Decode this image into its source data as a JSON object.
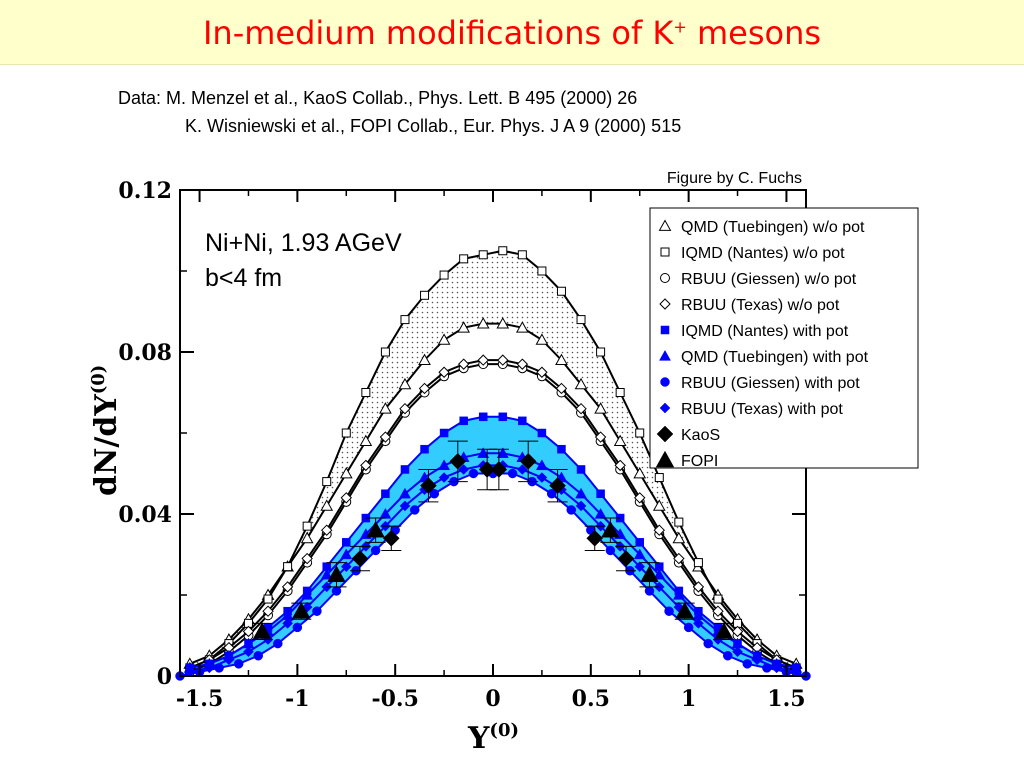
{
  "header": {
    "title": "In-medium modifications of K",
    "title_sup": "+",
    "title_suffix": " mesons",
    "title_color": "#ff0000",
    "background": "#ffffcc"
  },
  "sources": {
    "line1": "Data: M. Menzel et al., KaoS Collab.,  Phys. Lett. B 495 (2000) 26",
    "line2": "K. Wisniewski et al., FOPI Collab., Eur. Phys. J A 9 (2000) 515"
  },
  "credit": "Figure by C. Fuchs",
  "chart_data": {
    "type": "line",
    "xlabel": "Y",
    "xlabel_sup": "(0)",
    "ylabel": "dN/dY",
    "ylabel_sup": "(0)",
    "xlim": [
      -1.6,
      1.6
    ],
    "ylim": [
      0,
      0.12
    ],
    "x_ticks": [
      -1.5,
      -1,
      -0.5,
      0,
      0.5,
      1,
      1.5
    ],
    "x_tick_labels": [
      "-1.5",
      "-1",
      "-0.5",
      "0",
      "0.5",
      "1",
      "1.5"
    ],
    "y_ticks": [
      0,
      0.04,
      0.08,
      0.12
    ],
    "y_tick_labels": [
      "0",
      "0.04",
      "0.08",
      "0.12"
    ],
    "grid": false,
    "legend_position": "top-right",
    "annotations": [
      "Ni+Ni, 1.93 AGeV",
      "b<4 fm"
    ],
    "bands": [
      {
        "between": [
          "QMD (Tuebingen) w/o pot",
          "IQMD (Nantes) w/o pot"
        ],
        "fill": "dotted-gray"
      },
      {
        "between": [
          "IQMD (Nantes) with pot",
          "RBUU (Giessen) with pot"
        ],
        "fill": "#33ccff"
      }
    ],
    "series": [
      {
        "name": "QMD (Tuebingen) w/o pot",
        "color": "#000000",
        "marker": "triangle-open",
        "x": [
          -1.55,
          -1.45,
          -1.35,
          -1.25,
          -1.15,
          -1.05,
          -0.95,
          -0.85,
          -0.75,
          -0.65,
          -0.55,
          -0.45,
          -0.35,
          -0.25,
          -0.15,
          -0.05,
          0.05,
          0.15,
          0.25,
          0.35,
          0.45,
          0.55,
          0.65,
          0.75,
          0.85,
          0.95,
          1.05,
          1.15,
          1.25,
          1.35,
          1.45,
          1.55
        ],
        "y": [
          0.003,
          0.005,
          0.009,
          0.014,
          0.02,
          0.027,
          0.034,
          0.042,
          0.05,
          0.058,
          0.066,
          0.072,
          0.078,
          0.083,
          0.086,
          0.087,
          0.087,
          0.086,
          0.083,
          0.078,
          0.072,
          0.066,
          0.058,
          0.05,
          0.042,
          0.034,
          0.027,
          0.02,
          0.014,
          0.009,
          0.005,
          0.003
        ]
      },
      {
        "name": "IQMD (Nantes) w/o pot",
        "color": "#000000",
        "marker": "square-open",
        "x": [
          -1.55,
          -1.45,
          -1.35,
          -1.25,
          -1.15,
          -1.05,
          -0.95,
          -0.85,
          -0.75,
          -0.65,
          -0.55,
          -0.45,
          -0.35,
          -0.25,
          -0.15,
          -0.05,
          0.05,
          0.15,
          0.25,
          0.35,
          0.45,
          0.55,
          0.65,
          0.75,
          0.85,
          0.95,
          1.05,
          1.15,
          1.25,
          1.35,
          1.45,
          1.55
        ],
        "y": [
          0.002,
          0.004,
          0.008,
          0.013,
          0.019,
          0.027,
          0.037,
          0.048,
          0.06,
          0.07,
          0.08,
          0.088,
          0.094,
          0.099,
          0.103,
          0.104,
          0.105,
          0.104,
          0.1,
          0.095,
          0.088,
          0.08,
          0.07,
          0.06,
          0.049,
          0.038,
          0.028,
          0.019,
          0.013,
          0.008,
          0.004,
          0.002
        ]
      },
      {
        "name": "RBUU (Giessen) w/o pot",
        "color": "#000000",
        "marker": "circle-open",
        "x": [
          -1.55,
          -1.45,
          -1.35,
          -1.25,
          -1.15,
          -1.05,
          -0.95,
          -0.85,
          -0.75,
          -0.65,
          -0.55,
          -0.45,
          -0.35,
          -0.25,
          -0.15,
          -0.05,
          0.05,
          0.15,
          0.25,
          0.35,
          0.45,
          0.55,
          0.65,
          0.75,
          0.85,
          0.95,
          1.05,
          1.15,
          1.25,
          1.35,
          1.45,
          1.55
        ],
        "y": [
          0.001,
          0.003,
          0.006,
          0.01,
          0.015,
          0.021,
          0.028,
          0.035,
          0.043,
          0.051,
          0.058,
          0.065,
          0.07,
          0.074,
          0.076,
          0.077,
          0.077,
          0.076,
          0.074,
          0.07,
          0.065,
          0.058,
          0.051,
          0.043,
          0.035,
          0.028,
          0.021,
          0.015,
          0.01,
          0.006,
          0.003,
          0.001
        ]
      },
      {
        "name": "RBUU (Texas) w/o pot",
        "color": "#000000",
        "marker": "diamond-open",
        "x": [
          -1.55,
          -1.45,
          -1.35,
          -1.25,
          -1.15,
          -1.05,
          -0.95,
          -0.85,
          -0.75,
          -0.65,
          -0.55,
          -0.45,
          -0.35,
          -0.25,
          -0.15,
          -0.05,
          0.05,
          0.15,
          0.25,
          0.35,
          0.45,
          0.55,
          0.65,
          0.75,
          0.85,
          0.95,
          1.05,
          1.15,
          1.25,
          1.35,
          1.45,
          1.55
        ],
        "y": [
          0.002,
          0.004,
          0.007,
          0.011,
          0.016,
          0.022,
          0.029,
          0.036,
          0.044,
          0.052,
          0.059,
          0.066,
          0.071,
          0.075,
          0.077,
          0.078,
          0.078,
          0.077,
          0.075,
          0.071,
          0.066,
          0.059,
          0.052,
          0.044,
          0.036,
          0.029,
          0.022,
          0.016,
          0.011,
          0.007,
          0.004,
          0.002
        ]
      },
      {
        "name": "IQMD (Nantes) with pot",
        "color": "#0000ff",
        "marker": "square-filled",
        "x": [
          -1.55,
          -1.45,
          -1.35,
          -1.25,
          -1.15,
          -1.05,
          -0.95,
          -0.85,
          -0.75,
          -0.65,
          -0.55,
          -0.45,
          -0.35,
          -0.25,
          -0.15,
          -0.05,
          0.05,
          0.15,
          0.25,
          0.35,
          0.45,
          0.55,
          0.65,
          0.75,
          0.85,
          0.95,
          1.05,
          1.15,
          1.25,
          1.35,
          1.45,
          1.55
        ],
        "y": [
          0.002,
          0.003,
          0.005,
          0.008,
          0.012,
          0.016,
          0.021,
          0.027,
          0.033,
          0.039,
          0.045,
          0.051,
          0.056,
          0.06,
          0.063,
          0.064,
          0.064,
          0.063,
          0.06,
          0.056,
          0.051,
          0.045,
          0.039,
          0.033,
          0.027,
          0.021,
          0.016,
          0.012,
          0.008,
          0.005,
          0.003,
          0.002
        ]
      },
      {
        "name": "QMD (Tuebingen) with pot",
        "color": "#0000ff",
        "marker": "triangle-filled",
        "x": [
          -1.55,
          -1.45,
          -1.35,
          -1.25,
          -1.15,
          -1.05,
          -0.95,
          -0.85,
          -0.75,
          -0.65,
          -0.55,
          -0.45,
          -0.35,
          -0.25,
          -0.15,
          -0.05,
          0.05,
          0.15,
          0.25,
          0.35,
          0.45,
          0.55,
          0.65,
          0.75,
          0.85,
          0.95,
          1.05,
          1.15,
          1.25,
          1.35,
          1.45,
          1.55
        ],
        "y": [
          0.002,
          0.003,
          0.005,
          0.008,
          0.011,
          0.015,
          0.02,
          0.025,
          0.03,
          0.035,
          0.04,
          0.045,
          0.049,
          0.052,
          0.054,
          0.055,
          0.055,
          0.054,
          0.052,
          0.049,
          0.045,
          0.04,
          0.035,
          0.03,
          0.025,
          0.02,
          0.015,
          0.011,
          0.008,
          0.005,
          0.003,
          0.002
        ]
      },
      {
        "name": "RBUU (Giessen) with pot",
        "color": "#0000ff",
        "marker": "circle-filled",
        "x": [
          -1.6,
          -1.5,
          -1.4,
          -1.3,
          -1.2,
          -1.1,
          -1.0,
          -0.9,
          -0.8,
          -0.7,
          -0.6,
          -0.5,
          -0.4,
          -0.3,
          -0.2,
          -0.1,
          0.0,
          0.1,
          0.2,
          0.3,
          0.4,
          0.5,
          0.6,
          0.7,
          0.8,
          0.9,
          1.0,
          1.1,
          1.2,
          1.3,
          1.4,
          1.5,
          1.6
        ],
        "y": [
          0.0,
          0.001,
          0.002,
          0.003,
          0.005,
          0.008,
          0.012,
          0.016,
          0.021,
          0.026,
          0.031,
          0.036,
          0.041,
          0.045,
          0.048,
          0.05,
          0.05,
          0.05,
          0.048,
          0.045,
          0.041,
          0.036,
          0.031,
          0.026,
          0.021,
          0.016,
          0.012,
          0.008,
          0.005,
          0.003,
          0.002,
          0.001,
          0.0
        ]
      },
      {
        "name": "RBUU (Texas) with pot",
        "color": "#0000ff",
        "marker": "diamond-filled",
        "x": [
          -1.55,
          -1.45,
          -1.35,
          -1.25,
          -1.15,
          -1.05,
          -0.95,
          -0.85,
          -0.75,
          -0.65,
          -0.55,
          -0.45,
          -0.35,
          -0.25,
          -0.15,
          -0.05,
          0.05,
          0.15,
          0.25,
          0.35,
          0.45,
          0.55,
          0.65,
          0.75,
          0.85,
          0.95,
          1.05,
          1.15,
          1.25,
          1.35,
          1.45,
          1.55
        ],
        "y": [
          0.001,
          0.002,
          0.004,
          0.006,
          0.009,
          0.013,
          0.017,
          0.022,
          0.027,
          0.032,
          0.037,
          0.042,
          0.046,
          0.049,
          0.051,
          0.052,
          0.052,
          0.051,
          0.049,
          0.046,
          0.042,
          0.037,
          0.032,
          0.027,
          0.022,
          0.017,
          0.013,
          0.009,
          0.006,
          0.004,
          0.002,
          0.001
        ]
      },
      {
        "name": "KaoS",
        "color": "#000000",
        "marker": "diamond-filled-large",
        "errorbars": true,
        "x": [
          -0.68,
          -0.52,
          -0.33,
          -0.18,
          -0.03,
          0.03,
          0.18,
          0.33,
          0.52,
          0.68
        ],
        "y": [
          0.029,
          0.034,
          0.047,
          0.053,
          0.051,
          0.051,
          0.053,
          0.047,
          0.034,
          0.029
        ],
        "err": [
          0.003,
          0.003,
          0.004,
          0.005,
          0.005,
          0.005,
          0.005,
          0.004,
          0.003,
          0.003
        ]
      },
      {
        "name": "FOPI",
        "color": "#000000",
        "marker": "triangle-filled-large",
        "errorbars": true,
        "x": [
          -1.18,
          -0.98,
          -0.8,
          -0.6,
          0.6,
          0.8,
          0.98,
          1.18
        ],
        "y": [
          0.011,
          0.016,
          0.025,
          0.036,
          0.036,
          0.025,
          0.016,
          0.011
        ],
        "err": [
          0.002,
          0.002,
          0.003,
          0.003,
          0.003,
          0.003,
          0.002,
          0.002
        ]
      }
    ]
  }
}
